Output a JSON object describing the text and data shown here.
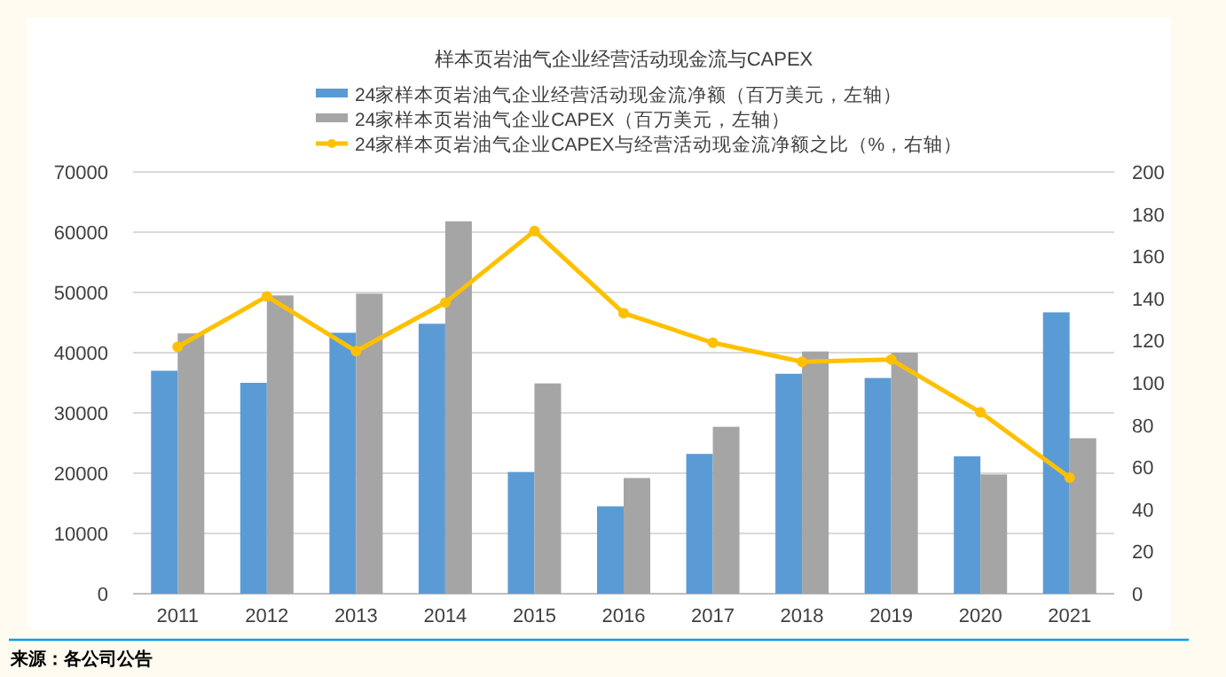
{
  "chart_data": {
    "type": "bar",
    "title": "样本页岩油气企业经营活动现金流与CAPEX",
    "categories": [
      "2011",
      "2012",
      "2013",
      "2014",
      "2015",
      "2016",
      "2017",
      "2018",
      "2019",
      "2020",
      "2021"
    ],
    "series": [
      {
        "name": "24家样本页岩油气企业经营活动现金流净额（百万美元，左轴）",
        "color": "#5b9bd5",
        "values": [
          37000,
          35000,
          43300,
          44800,
          20200,
          14500,
          23200,
          36500,
          35800,
          22800,
          46700
        ]
      },
      {
        "name": "24家样本页岩油气企业CAPEX（百万美元，左轴）",
        "color": "#a5a5a5",
        "values": [
          43200,
          49500,
          49800,
          61800,
          34900,
          19200,
          27700,
          40200,
          40000,
          19800,
          25800
        ]
      },
      {
        "name": "24家样本页岩油气企业CAPEX与经营活动现金流净额之比（%，右轴）",
        "type": "line",
        "axis": "y2",
        "marker": "circle",
        "color": "#ffc000",
        "values": [
          117,
          141,
          115,
          138,
          172,
          133,
          119,
          110,
          111,
          86,
          55
        ]
      }
    ],
    "ylim": [
      0,
      70000
    ],
    "yticks": [
      0,
      10000,
      20000,
      30000,
      40000,
      50000,
      60000,
      70000
    ],
    "y2lim": [
      0,
      200
    ],
    "y2ticks": [
      0,
      20,
      40,
      60,
      80,
      100,
      120,
      140,
      160,
      180,
      200
    ],
    "grid": "y",
    "legend": "top",
    "annotations": [
      "来源：各公司公告"
    ]
  }
}
